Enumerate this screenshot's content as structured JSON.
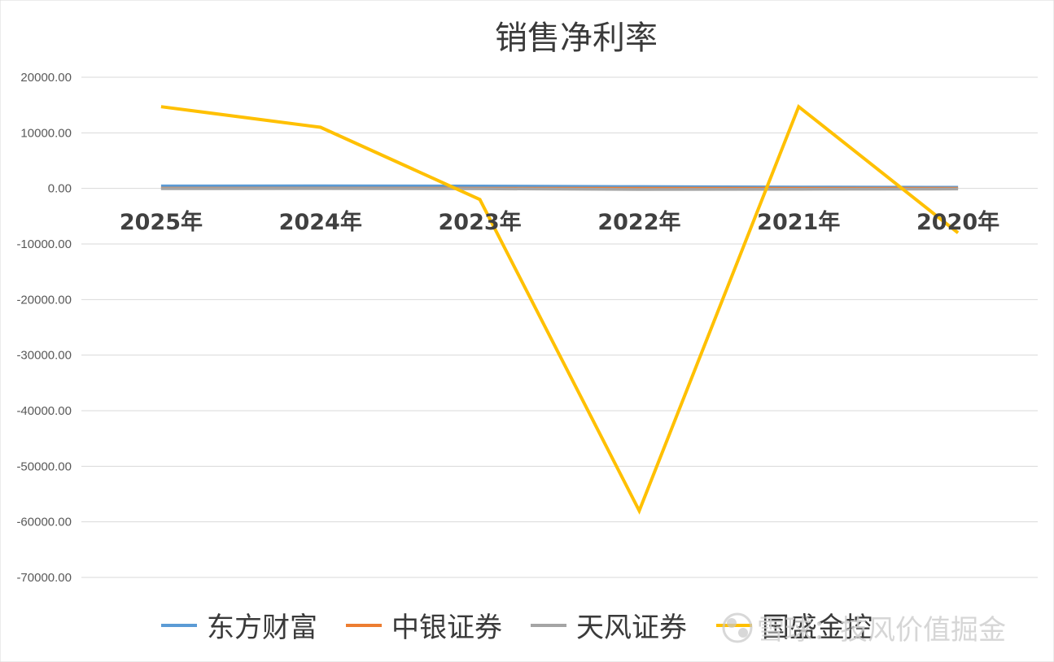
{
  "chart_data": {
    "type": "line",
    "title": "销售净利率",
    "categories": [
      "2025年",
      "2024年",
      "2023年",
      "2022年",
      "2021年",
      "2020年"
    ],
    "ylim": [
      -70000,
      20000
    ],
    "yticks": [
      20000,
      10000,
      0,
      -10000,
      -20000,
      -30000,
      -40000,
      -50000,
      -60000,
      -70000
    ],
    "ytick_labels": [
      "20000.00",
      "10000.00",
      "0.00",
      "-10000.00",
      "-20000.00",
      "-30000.00",
      "-40000.00",
      "-50000.00",
      "-60000.00",
      "-70000.00"
    ],
    "grid": true,
    "legend_position": "bottom",
    "series": [
      {
        "name": "东方财富",
        "color": "#5b9bd5",
        "values": [
          450,
          460,
          440,
          330,
          250,
          200
        ]
      },
      {
        "name": "中银证券",
        "color": "#ed7d31",
        "values": [
          30,
          30,
          30,
          30,
          30,
          30
        ]
      },
      {
        "name": "天风证券",
        "color": "#a5a5a5",
        "values": [
          -50,
          -40,
          -60,
          -200,
          -150,
          -100
        ]
      },
      {
        "name": "国盛金控",
        "color": "#ffc000",
        "values": [
          14700,
          11000,
          -2000,
          -58000,
          14700,
          -8000
        ]
      }
    ]
  },
  "watermark": {
    "text": "雪球：技风价值掘金"
  }
}
